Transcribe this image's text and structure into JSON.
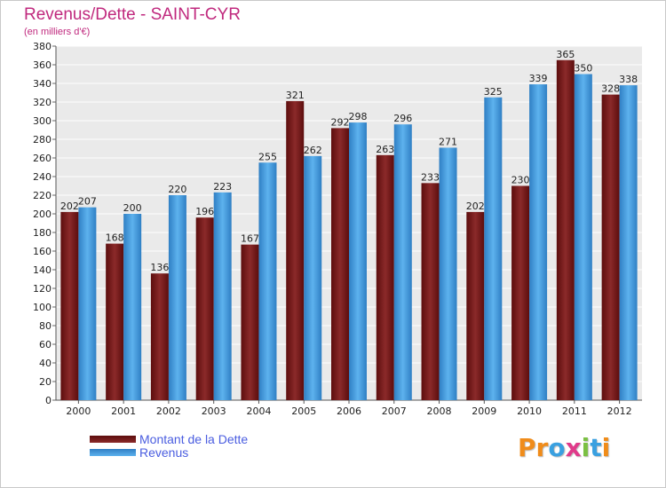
{
  "title": "Revenus/Dette - SAINT-CYR",
  "subtitle": "(en milliers d'€)",
  "colors": {
    "title": "#c0297e",
    "dette": "#7a1a1a",
    "revenus": "#3f98de",
    "legend_text": "#4a5de0",
    "plot_bg": "#eaeaea",
    "grid": "#ffffff"
  },
  "chart_data": {
    "type": "bar",
    "categories": [
      "2000",
      "2001",
      "2002",
      "2003",
      "2004",
      "2005",
      "2006",
      "2007",
      "2008",
      "2009",
      "2010",
      "2011",
      "2012"
    ],
    "series": [
      {
        "name": "Montant de la Dette",
        "values": [
          202,
          168,
          136,
          196,
          167,
          321,
          292,
          263,
          233,
          202,
          230,
          365,
          328
        ]
      },
      {
        "name": "Revenus",
        "values": [
          207,
          200,
          220,
          223,
          255,
          262,
          298,
          296,
          271,
          325,
          339,
          350,
          338
        ]
      }
    ],
    "ylim": [
      0,
      380
    ],
    "ytick_step": 20,
    "grid": true,
    "legend_position": "bottom-left",
    "data_labels": true
  },
  "logo": {
    "text": "Proxiti",
    "letters": [
      "P",
      "r",
      "o",
      "x",
      "i",
      "t",
      "i"
    ],
    "letter_colors": [
      "#f08c1a",
      "#f08c1a",
      "#3aa0e0",
      "#e03a8a",
      "#7bc043",
      "#3aa0e0",
      "#f08c1a"
    ]
  }
}
